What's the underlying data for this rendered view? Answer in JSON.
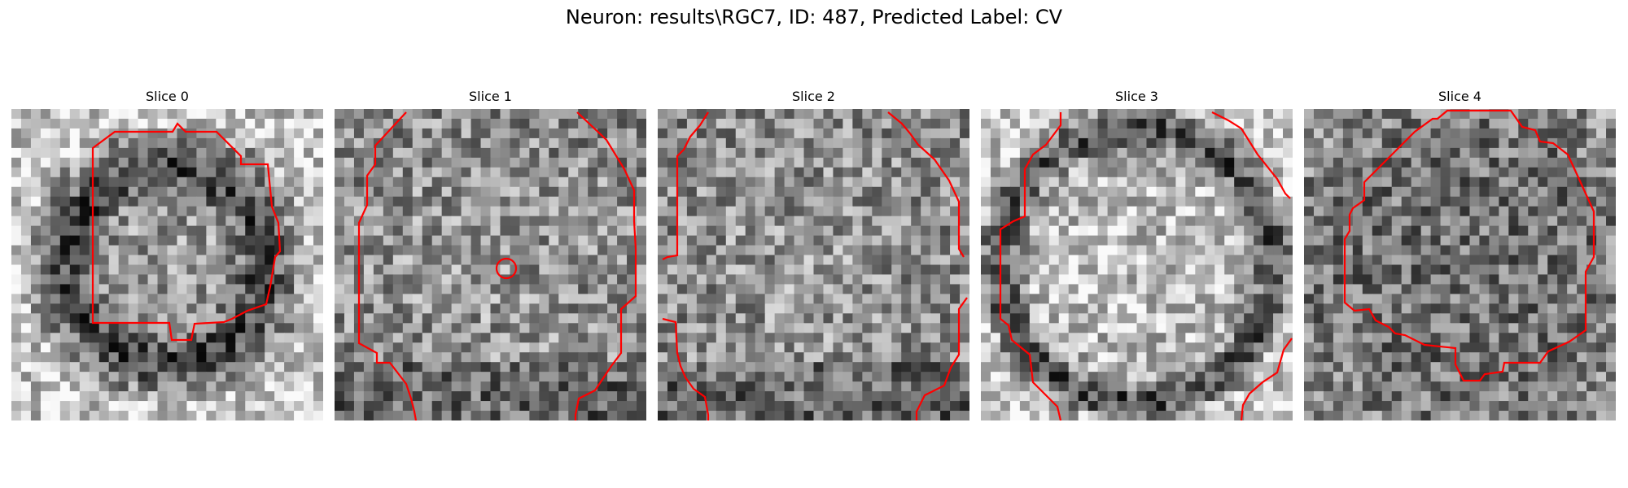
{
  "figure": {
    "title": "Neuron: results\\RGC7, ID: 487, Predicted Label: CV",
    "contour_color": "#ff0000"
  },
  "panels": [
    {
      "title": "Slice 0",
      "style": "ring"
    },
    {
      "title": "Slice 1",
      "style": "flat"
    },
    {
      "title": "Slice 2",
      "style": "flat"
    },
    {
      "title": "Slice 3",
      "style": "bright"
    },
    {
      "title": "Slice 4",
      "style": "dim"
    }
  ]
}
